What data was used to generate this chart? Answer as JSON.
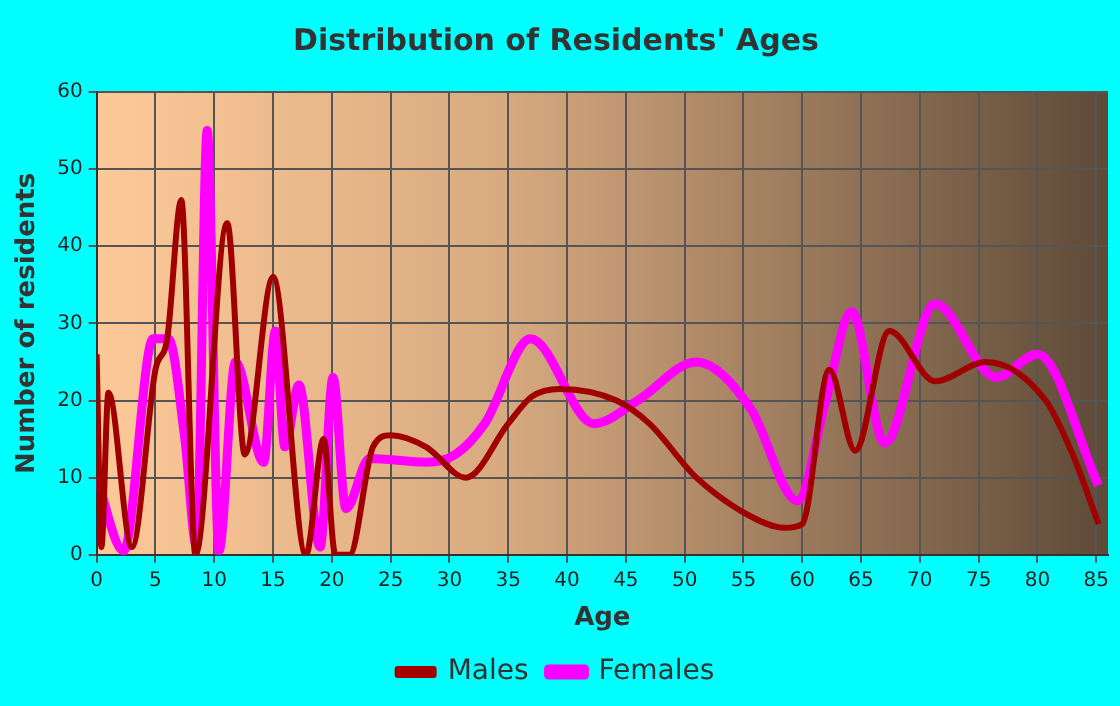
{
  "chart_data": {
    "type": "line",
    "title": "Distribution of Residents' Ages",
    "xlabel": "Age",
    "ylabel": "Number of residents",
    "xlim": [
      0,
      86
    ],
    "xticks": [
      0,
      5,
      10,
      15,
      20,
      25,
      30,
      35,
      40,
      45,
      50,
      55,
      60,
      65,
      70,
      75,
      80,
      85
    ],
    "ylim": [
      0,
      60
    ],
    "yticks": [
      0,
      10,
      20,
      30,
      40,
      50,
      60
    ],
    "grid": true,
    "legend": "bottom",
    "marker": "none",
    "line_style": "solid",
    "series": [
      {
        "name": "Males",
        "color": "#a00000",
        "x": [
          0,
          0.4,
          1,
          3,
          5,
          6,
          7.2,
          8.4,
          11.1,
          12.6,
          15,
          17.8,
          19.3,
          20.3,
          21.5,
          23.5,
          25,
          28,
          31.4,
          35,
          37,
          39.4,
          44.2,
          47,
          51,
          55.6,
          58.5,
          60,
          62.3,
          64.5,
          67.4,
          71.3,
          75.6,
          80.7,
          83,
          85.2
        ],
        "values": [
          26,
          1,
          21,
          1,
          24,
          28,
          46,
          0,
          43,
          13,
          36,
          0,
          15,
          0,
          0,
          14,
          15.5,
          14,
          10,
          17,
          20.5,
          21.5,
          20,
          17,
          10,
          5,
          3.5,
          4,
          24,
          13.5,
          29,
          22.5,
          25,
          20,
          13,
          4
        ]
      },
      {
        "name": "Females",
        "color": "#ff00ff",
        "x": [
          0,
          2.3,
          4.8,
          6.1,
          7.5,
          8.5,
          9.4,
          10.4,
          11.8,
          14.2,
          15.2,
          16,
          17.2,
          19,
          20.1,
          21.2,
          23.2,
          28,
          30.5,
          33,
          36.9,
          42.3,
          46,
          51,
          55.6,
          59.6,
          62,
          64.2,
          67,
          71.3,
          76.5,
          80,
          85.2
        ],
        "values": [
          10,
          0.5,
          28,
          28,
          15,
          1,
          55,
          0.5,
          25,
          12,
          29,
          14,
          22,
          1,
          23,
          6,
          12.5,
          12,
          13,
          17,
          28,
          17,
          20,
          25,
          19,
          7,
          20,
          31.5,
          14.5,
          32.5,
          23,
          26,
          9
        ]
      }
    ]
  }
}
